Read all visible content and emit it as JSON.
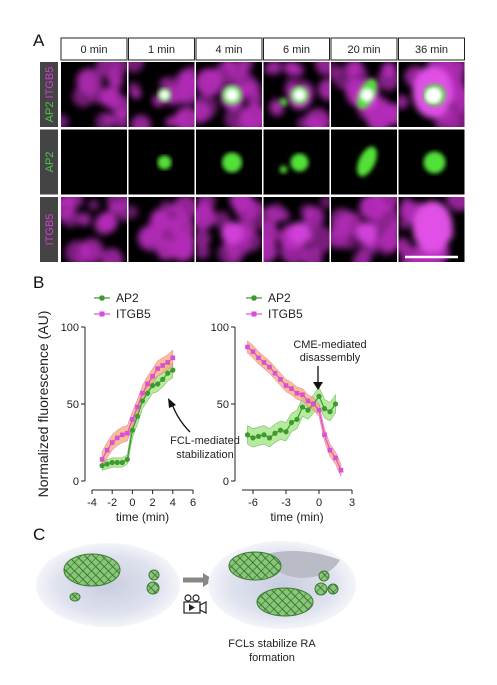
{
  "panel_labels": [
    "A",
    "B",
    "C"
  ],
  "microscopy": {
    "columns": [
      "0 min",
      "1 min",
      "4 min",
      "6 min",
      "20 min",
      "36 min"
    ],
    "rows": [
      [
        {
          "text": "AP2",
          "color": "#4cc94c"
        },
        {
          "text": "ITGB5",
          "color": "#d43cd4"
        }
      ],
      [
        {
          "text": "AP2",
          "color": "#4cc94c"
        }
      ],
      [
        {
          "text": "ITGB5",
          "color": "#d43cd4"
        }
      ]
    ]
  },
  "chart_data": [
    {
      "type": "line",
      "ylabel": "Normalized fluorescence (AU)",
      "xlabel": "time (min)",
      "annotation": [
        "FCL-mediated",
        "stabilization"
      ],
      "legend": "upper left",
      "x": [
        -3,
        -2.5,
        -2,
        -1.5,
        -1,
        -0.5,
        0,
        0.5,
        1,
        1.5,
        2,
        2.5,
        3,
        3.5,
        4
      ],
      "xlim": [
        -4,
        6
      ],
      "xticks": [
        -4,
        -2,
        0,
        2,
        4,
        6
      ],
      "ylim": [
        0,
        100
      ],
      "yticks": [
        0,
        50,
        100
      ],
      "series": [
        {
          "name": "AP2",
          "color": "#3c9a2e",
          "band_color": "#9fe27e",
          "marker": "circle",
          "values": [
            10,
            11,
            12,
            12,
            12,
            14,
            33,
            42,
            52,
            57,
            62,
            63,
            66,
            70,
            72
          ],
          "errors": [
            3,
            3,
            3,
            3,
            3,
            3,
            5,
            5,
            5,
            5,
            5,
            5,
            5,
            5,
            5
          ]
        },
        {
          "name": "ITGB5",
          "color": "#d84fd8",
          "band_color": "#f7a96a",
          "marker": "square",
          "values": [
            14,
            20,
            25,
            28,
            30,
            31,
            40,
            48,
            57,
            63,
            68,
            73,
            75,
            77,
            80
          ],
          "errors": [
            5,
            5,
            5,
            5,
            5,
            5,
            5,
            5,
            5,
            5,
            5,
            5,
            5,
            5,
            5
          ]
        }
      ]
    },
    {
      "type": "line",
      "xlabel": "time (min)",
      "annotation": [
        "CME-mediated",
        "disassembly"
      ],
      "legend": "upper left",
      "x": [
        -6.5,
        -6,
        -5.5,
        -5,
        -4.5,
        -4,
        -3.5,
        -3,
        -2.5,
        -2,
        -1.5,
        -1,
        -0.5,
        0,
        0.5,
        1,
        1.5,
        2
      ],
      "xlim": [
        -7,
        3
      ],
      "xticks": [
        -6,
        -3,
        0,
        3
      ],
      "ylim": [
        0,
        100
      ],
      "yticks": [
        0,
        50,
        100
      ],
      "series": [
        {
          "name": "AP2",
          "color": "#3c9a2e",
          "band_color": "#9fe27e",
          "marker": "circle",
          "values": [
            30,
            28,
            29,
            30,
            28,
            31,
            33,
            32,
            38,
            40,
            48,
            46,
            50,
            55,
            47,
            45,
            50,
            null
          ],
          "errors": [
            6,
            6,
            6,
            6,
            6,
            6,
            6,
            6,
            6,
            6,
            6,
            6,
            6,
            6,
            6,
            6,
            6,
            null
          ]
        },
        {
          "name": "ITGB5",
          "color": "#d84fd8",
          "band_color": "#f7a96a",
          "marker": "square",
          "values": [
            87,
            84,
            80,
            77,
            74,
            70,
            66,
            62,
            60,
            57,
            56,
            52,
            50,
            46,
            30,
            20,
            15,
            7
          ],
          "errors": [
            4,
            4,
            4,
            4,
            4,
            4,
            4,
            4,
            4,
            4,
            4,
            4,
            4,
            4,
            4,
            4,
            4,
            4
          ]
        }
      ]
    }
  ],
  "schematic": {
    "caption": [
      "FCLs stabilize RA",
      "formation"
    ]
  }
}
